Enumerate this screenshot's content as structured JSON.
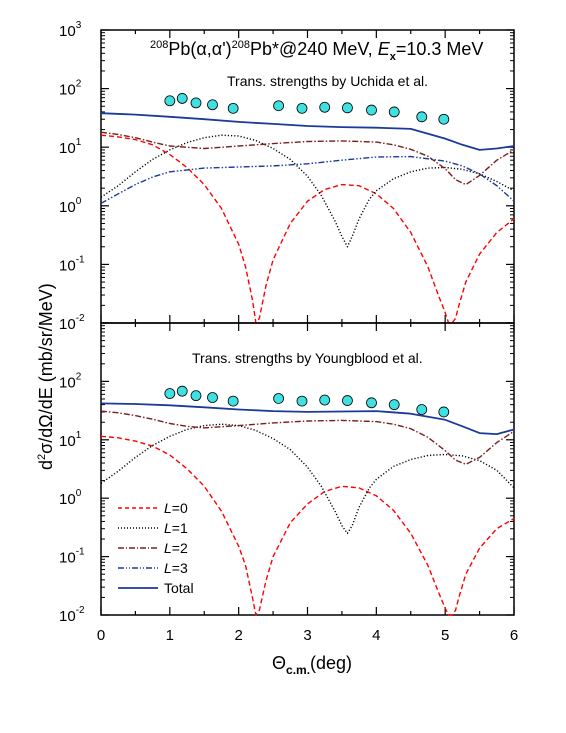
{
  "chart_data": [
    {
      "type": "line",
      "panel": "top",
      "title_parts": {
        "mass_number": "208",
        "text1": "Pb(",
        "alpha1": "α",
        "comma": ",",
        "alpha2": "α'",
        "text2": ")",
        "mass_number2": "208",
        "text3": "Pb*@240 MeV, ",
        "energy_symbol": "E",
        "energy_subscript": "x",
        "energy_text": "=10.3 MeV"
      },
      "subtitle": "Trans. strengths by Uchida et al.",
      "xlim": [
        0,
        6
      ],
      "ylim": [
        0.01,
        1000
      ],
      "yscale": "log",
      "x_tick_labels": [
        "0",
        "1",
        "2",
        "3",
        "4",
        "5",
        "6"
      ],
      "y_tick_labels": [
        {
          "base": "10",
          "exp": "3"
        },
        {
          "base": "10",
          "exp": "2"
        },
        {
          "base": "10",
          "exp": "1"
        },
        {
          "base": "10",
          "exp": "0"
        },
        {
          "base": "10",
          "exp": "-1"
        },
        {
          "base": "10",
          "exp": "-2"
        }
      ],
      "data_points": {
        "x": [
          1.0,
          1.18,
          1.38,
          1.62,
          1.92,
          2.58,
          2.92,
          3.25,
          3.58,
          3.93,
          4.26,
          4.66,
          4.98
        ],
        "y": [
          62,
          68,
          57,
          53,
          46,
          51,
          46,
          48,
          47,
          43,
          40,
          33,
          30
        ],
        "color": "#40e0e0"
      },
      "series": [
        {
          "id": "L0",
          "color": "#ff0000",
          "dash": "dashed",
          "x": [
            0.0,
            0.25,
            0.5,
            0.75,
            1.0,
            1.25,
            1.5,
            1.75,
            2.0,
            2.1,
            2.2,
            2.25,
            2.3,
            2.4,
            2.5,
            2.75,
            3.0,
            3.25,
            3.5,
            3.75,
            4.0,
            4.25,
            4.5,
            4.75,
            4.9,
            5.0,
            5.05,
            5.1,
            5.15,
            5.2,
            5.3,
            5.5,
            5.75,
            6.0
          ],
          "y": [
            16,
            15,
            13.5,
            11,
            7.5,
            4.5,
            2.3,
            0.9,
            0.22,
            0.09,
            0.025,
            0.01,
            0.012,
            0.045,
            0.12,
            0.5,
            1.2,
            1.9,
            2.3,
            2.2,
            1.6,
            0.9,
            0.35,
            0.09,
            0.03,
            0.015,
            0.01,
            0.01,
            0.012,
            0.02,
            0.05,
            0.15,
            0.35,
            0.6
          ]
        },
        {
          "id": "L1",
          "color": "#000000",
          "dash": "dotted",
          "x": [
            0.0,
            0.25,
            0.5,
            0.75,
            1.0,
            1.25,
            1.5,
            1.75,
            2.0,
            2.25,
            2.5,
            2.75,
            3.0,
            3.2,
            3.4,
            3.5,
            3.58,
            3.65,
            3.75,
            3.9,
            4.0,
            4.25,
            4.5,
            4.75,
            5.0,
            5.25,
            5.5,
            5.75,
            6.0
          ],
          "y": [
            1.4,
            2.2,
            3.8,
            6.2,
            9,
            12,
            14.5,
            16,
            15.5,
            13,
            9.5,
            6.2,
            3.2,
            1.5,
            0.55,
            0.3,
            0.2,
            0.3,
            0.6,
            1.3,
            1.8,
            2.9,
            3.8,
            4.4,
            4.5,
            4.2,
            3.5,
            2.6,
            1.8
          ]
        },
        {
          "id": "L2",
          "color": "#7a1f1f",
          "dash": "dashdot",
          "x": [
            0.0,
            0.25,
            0.5,
            0.75,
            1.0,
            1.5,
            2.0,
            2.5,
            3.0,
            3.5,
            4.0,
            4.25,
            4.5,
            4.75,
            5.0,
            5.15,
            5.3,
            5.5,
            5.75,
            6.0
          ],
          "y": [
            18,
            16.5,
            14.5,
            12.2,
            10.5,
            9.5,
            10.5,
            11.5,
            12.5,
            12.8,
            12.2,
            11,
            9.2,
            7,
            4.3,
            2.8,
            2.3,
            3.3,
            6,
            9
          ]
        },
        {
          "id": "L3",
          "color": "#1a3a9c",
          "dash": "dashdotdot",
          "x": [
            0.0,
            0.25,
            0.5,
            0.75,
            1.0,
            1.5,
            2.0,
            2.5,
            3.0,
            3.5,
            4.0,
            4.5,
            5.0,
            5.25,
            5.5,
            5.75,
            6.0
          ],
          "y": [
            1.1,
            1.6,
            2.3,
            3.1,
            3.8,
            4.4,
            4.6,
            4.8,
            5.2,
            6.0,
            6.8,
            6.9,
            5.8,
            4.8,
            3.5,
            2.2,
            1.2
          ]
        },
        {
          "id": "Total",
          "color": "#1a3a9c",
          "dash": "solid",
          "x": [
            0.0,
            0.5,
            1.0,
            1.5,
            2.0,
            2.5,
            3.0,
            3.5,
            4.0,
            4.5,
            5.0,
            5.25,
            5.5,
            5.75,
            6.0
          ],
          "y": [
            38,
            36,
            33,
            30,
            27,
            25,
            23,
            22,
            21.5,
            20.5,
            14,
            11,
            9,
            9.5,
            10.5
          ]
        }
      ]
    },
    {
      "type": "line",
      "panel": "bottom",
      "subtitle": "Trans. strengths by Youngblood et al.",
      "xlim": [
        0,
        6
      ],
      "ylim": [
        0.01,
        1000
      ],
      "yscale": "log",
      "xlabel": "Θc.m.(deg)",
      "x_tick_labels": [
        "0",
        "1",
        "2",
        "3",
        "4",
        "5",
        "6"
      ],
      "y_tick_labels": [
        {
          "base": "10",
          "exp": "2"
        },
        {
          "base": "10",
          "exp": "1"
        },
        {
          "base": "10",
          "exp": "0"
        },
        {
          "base": "10",
          "exp": "-1"
        },
        {
          "base": "10",
          "exp": "-2"
        }
      ],
      "data_points": {
        "x": [
          1.0,
          1.18,
          1.38,
          1.62,
          1.92,
          2.58,
          2.92,
          3.25,
          3.58,
          3.93,
          4.26,
          4.66,
          4.98
        ],
        "y": [
          62,
          68,
          57,
          53,
          46,
          51,
          46,
          48,
          47,
          43,
          40,
          33,
          30
        ],
        "color": "#40e0e0"
      },
      "series": [
        {
          "id": "L0",
          "color": "#ff0000",
          "dash": "dashed",
          "x": [
            0.0,
            0.25,
            0.5,
            0.75,
            1.0,
            1.25,
            1.5,
            1.75,
            2.0,
            2.1,
            2.2,
            2.25,
            2.3,
            2.4,
            2.5,
            2.75,
            3.0,
            3.25,
            3.5,
            3.75,
            4.0,
            4.25,
            4.5,
            4.75,
            4.9,
            5.0,
            5.05,
            5.1,
            5.15,
            5.2,
            5.3,
            5.5,
            5.75,
            6.0
          ],
          "y": [
            11.5,
            10.8,
            9.5,
            7.8,
            5.5,
            3.2,
            1.6,
            0.6,
            0.15,
            0.07,
            0.02,
            0.01,
            0.012,
            0.04,
            0.1,
            0.38,
            0.8,
            1.3,
            1.6,
            1.5,
            1.1,
            0.62,
            0.25,
            0.07,
            0.025,
            0.013,
            0.01,
            0.01,
            0.012,
            0.02,
            0.05,
            0.14,
            0.3,
            0.45
          ]
        },
        {
          "id": "L1",
          "color": "#000000",
          "dash": "dotted",
          "x": [
            0.0,
            0.25,
            0.5,
            0.75,
            1.0,
            1.25,
            1.5,
            1.75,
            2.0,
            2.25,
            2.5,
            2.75,
            3.0,
            3.2,
            3.4,
            3.5,
            3.58,
            3.65,
            3.75,
            3.9,
            4.0,
            4.25,
            4.5,
            4.75,
            5.0,
            5.25,
            5.5,
            5.75,
            6.0
          ],
          "y": [
            1.8,
            2.9,
            5,
            8,
            11.5,
            15,
            17.5,
            18.5,
            17.5,
            14.5,
            10.5,
            6.8,
            3.4,
            1.6,
            0.6,
            0.34,
            0.25,
            0.34,
            0.7,
            1.5,
            2.1,
            3.5,
            4.6,
            5.4,
            5.6,
            5.3,
            4.4,
            3.0,
            1.5
          ]
        },
        {
          "id": "L2",
          "color": "#7a1f1f",
          "dash": "dashdot",
          "x": [
            0.0,
            0.25,
            0.5,
            0.75,
            1.0,
            1.25,
            1.5,
            2.0,
            2.5,
            3.0,
            3.5,
            4.0,
            4.25,
            4.5,
            4.75,
            5.0,
            5.15,
            5.3,
            5.5,
            5.75,
            6.0
          ],
          "y": [
            31,
            29,
            26,
            22.5,
            19,
            17,
            16,
            17.5,
            19.5,
            21,
            21.5,
            20.5,
            18.5,
            15.5,
            11,
            6.5,
            4.5,
            3.8,
            5,
            9,
            14
          ]
        },
        {
          "id": "Total",
          "color": "#1a3a9c",
          "dash": "solid",
          "x": [
            0.0,
            0.5,
            1.0,
            1.5,
            2.0,
            2.5,
            3.0,
            3.5,
            4.0,
            4.5,
            5.0,
            5.25,
            5.5,
            5.75,
            6.0
          ],
          "y": [
            42,
            41,
            39,
            36,
            33,
            31,
            30,
            30.5,
            31,
            28,
            22,
            17,
            13,
            12.5,
            15
          ]
        }
      ],
      "legend": {
        "placement": "bottom-left",
        "entries": [
          {
            "id": "L0",
            "label_letter": "L",
            "label_value": "=0"
          },
          {
            "id": "L1",
            "label_letter": "L",
            "label_value": "=1"
          },
          {
            "id": "L2",
            "label_letter": "L",
            "label_value": "=2"
          },
          {
            "id": "L3",
            "label_letter": "L",
            "label_value": "=3"
          },
          {
            "id": "Total",
            "label_letter": "",
            "label_value": "Total"
          }
        ]
      }
    }
  ],
  "shared_ylabel": "d²σ/dΩ/dE (mb/sr/MeV)",
  "xlabel_theta": "Θ",
  "xlabel_sub": "c.m.",
  "xlabel_unit": "(deg)",
  "ylabel_parts": {
    "d1": "d",
    "sup": "2",
    "rest": "σ/dΩ/dE (mb/sr/MeV)"
  }
}
